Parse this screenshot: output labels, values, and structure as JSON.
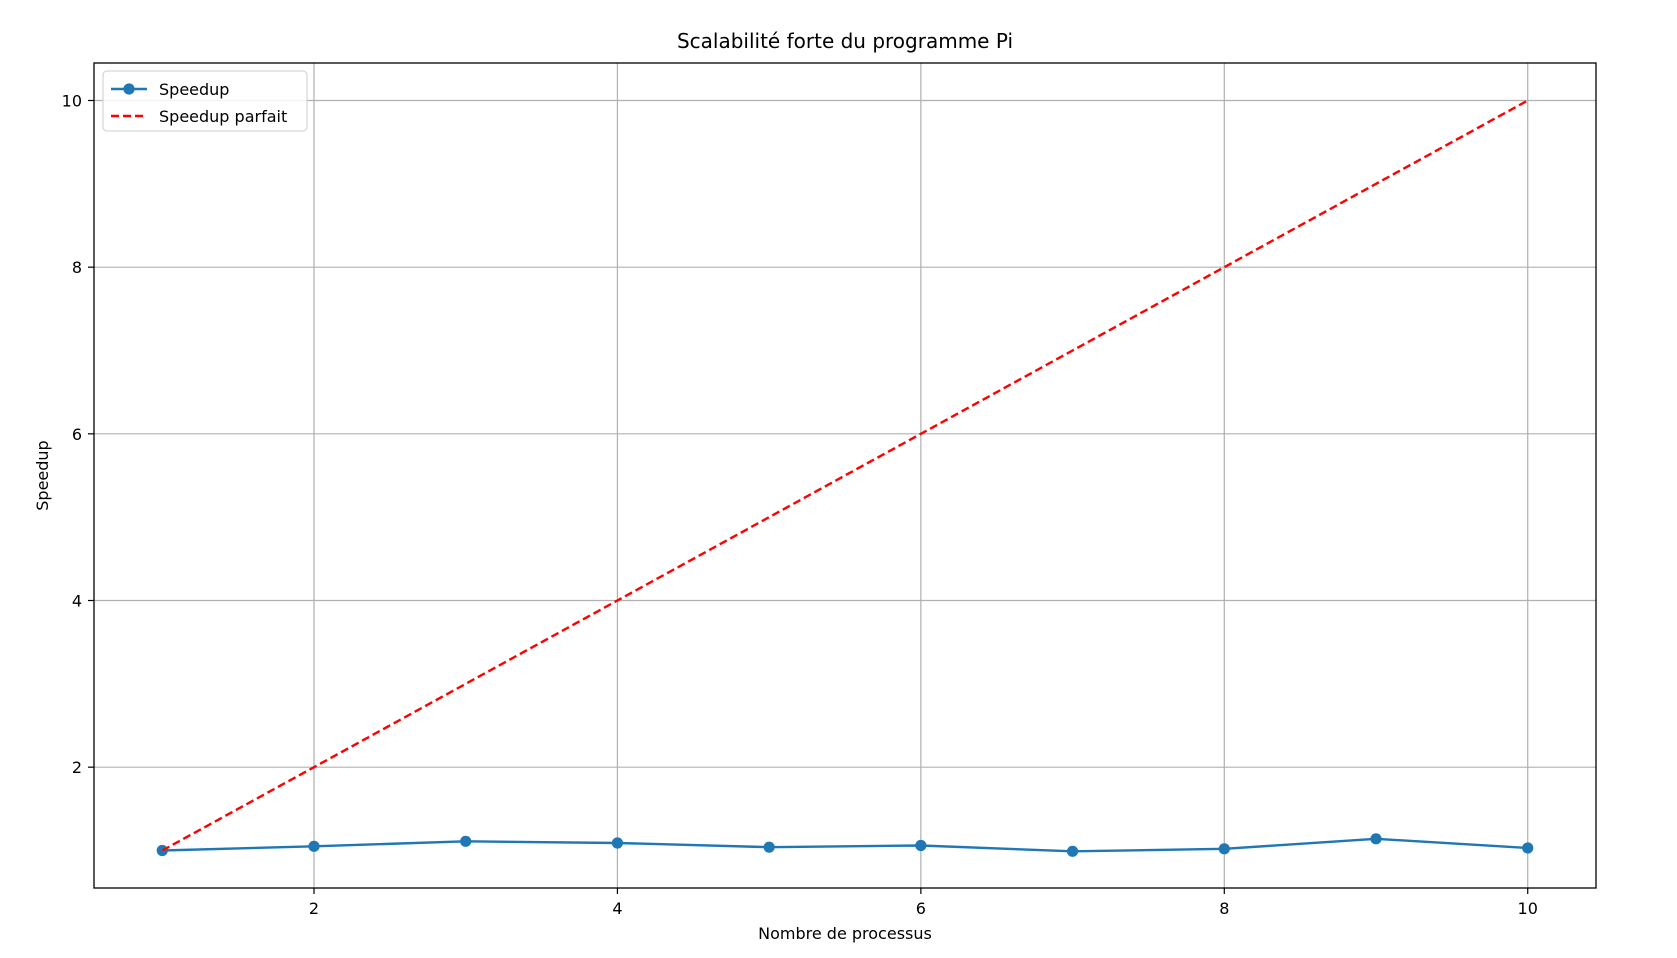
{
  "chart_data": {
    "type": "line",
    "title": "Scalabilité forte du programme Pi",
    "xlabel": "Nombre de processus",
    "ylabel": "Speedup",
    "x": [
      1,
      2,
      3,
      4,
      5,
      6,
      7,
      8,
      9,
      10
    ],
    "xlim": [
      0.55,
      10.45
    ],
    "ylim": [
      0.55,
      10.45
    ],
    "xticks": [
      2,
      4,
      6,
      8,
      10
    ],
    "yticks": [
      2,
      4,
      6,
      8,
      10
    ],
    "grid": true,
    "legend_position": "top-left",
    "series": [
      {
        "name": "Speedup",
        "style": "solid-with-markers",
        "color": "#1f77b4",
        "values": [
          1.0,
          1.05,
          1.11,
          1.09,
          1.04,
          1.06,
          0.99,
          1.02,
          1.14,
          1.03
        ]
      },
      {
        "name": "Speedup parfait",
        "style": "dashed",
        "color": "#ff0000",
        "values": [
          1,
          2,
          3,
          4,
          5,
          6,
          7,
          8,
          9,
          10
        ]
      }
    ]
  }
}
